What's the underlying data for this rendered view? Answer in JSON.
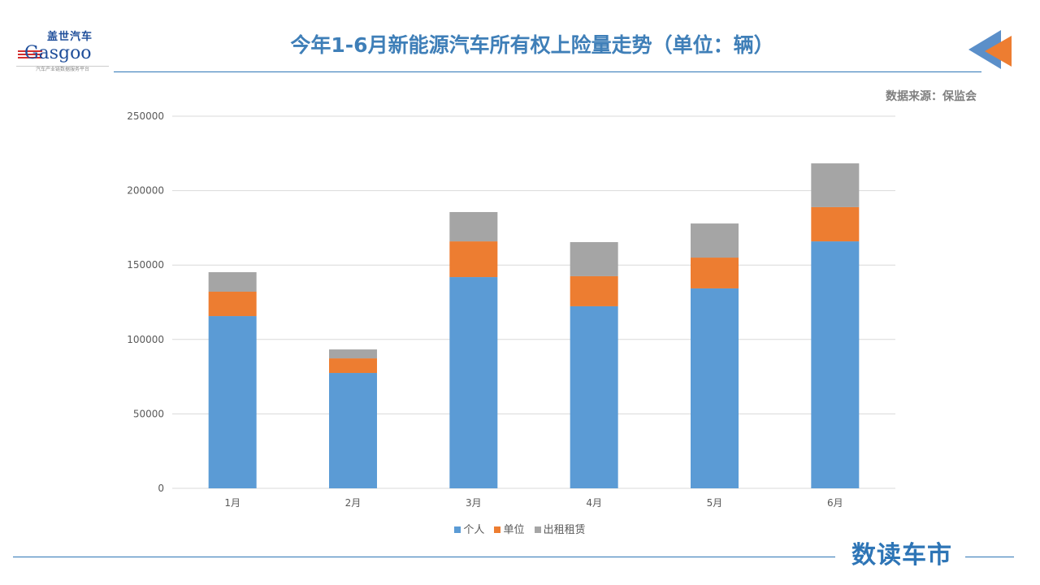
{
  "title": "今年1-6月新能源汽车所有权上险量走势（单位：辆）",
  "source": "数据来源：保监会",
  "logo": {
    "cn": "盖世汽车",
    "en": "Gasgoo",
    "tagline": "汽车产业链数据服务平台"
  },
  "brand": "数读车市",
  "chart_data": {
    "type": "bar",
    "stacked": true,
    "categories": [
      "1月",
      "2月",
      "3月",
      "4月",
      "5月",
      "6月"
    ],
    "series": [
      {
        "name": "个人",
        "color": "#5b9bd5",
        "values": [
          115700,
          77500,
          141900,
          122300,
          134300,
          165900
        ]
      },
      {
        "name": "单位",
        "color": "#ed7d31",
        "values": [
          16400,
          9800,
          24000,
          20200,
          20700,
          23000
        ]
      },
      {
        "name": "出租租赁",
        "color": "#a5a5a5",
        "values": [
          13100,
          6000,
          19700,
          22900,
          22900,
          29400
        ]
      }
    ],
    "ylim": [
      0,
      250000
    ],
    "yticks": [
      "0",
      "50000",
      "100000",
      "150000",
      "200000",
      "250000"
    ],
    "grid": true,
    "legend": "bottom"
  }
}
